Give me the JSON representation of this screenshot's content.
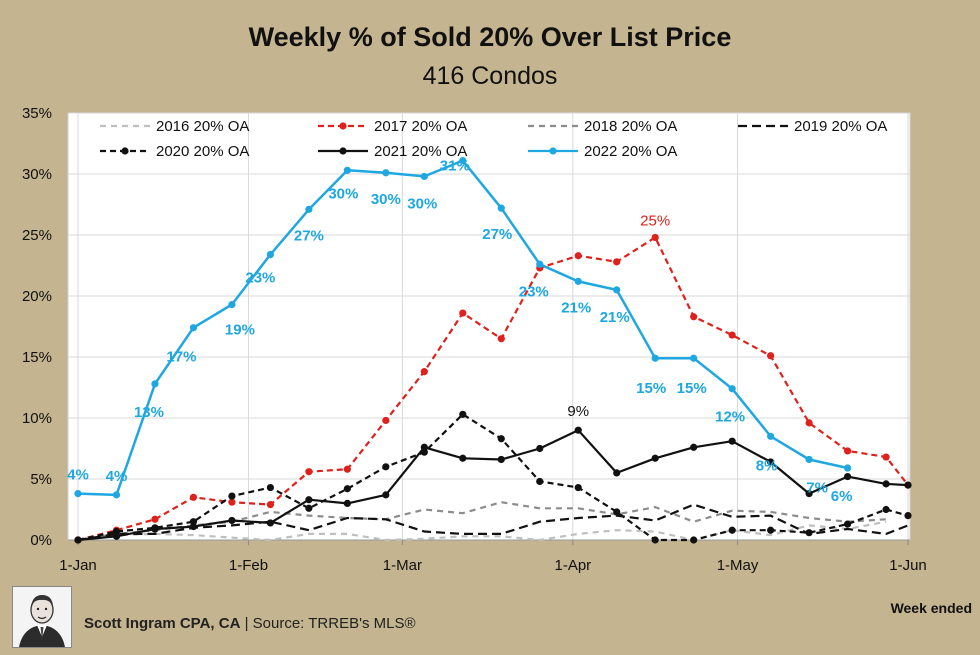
{
  "chart_data": {
    "type": "line",
    "title": "Weekly % of Sold 20% Over List Price",
    "subtitle": "416 Condos",
    "xlabel": "Week ended",
    "ylabel": "",
    "ylim": [
      0,
      35
    ],
    "y_ticks": [
      "0%",
      "5%",
      "10%",
      "15%",
      "20%",
      "25%",
      "30%",
      "35%"
    ],
    "x_ticks": [
      "1-Jan",
      "1-Feb",
      "1-Mar",
      "1-Apr",
      "1-May",
      "1-Jun"
    ],
    "x_tick_weeks": [
      0,
      4.43,
      8.43,
      12.86,
      17.14,
      21.57
    ],
    "x_range": [
      0,
      21.57
    ],
    "series": [
      {
        "name": "2016 20% OA",
        "color": "#bfbfbf",
        "dash": "6,5",
        "markers": false,
        "x": [
          0,
          1,
          2,
          3,
          4,
          5,
          6,
          7,
          8,
          9,
          10,
          11,
          12,
          13,
          14,
          15,
          16,
          17,
          18,
          19,
          20,
          21
        ],
        "values": [
          0,
          0.4,
          0.5,
          0.4,
          0.2,
          0,
          0.5,
          0.5,
          0,
          0.1,
          0.3,
          0.3,
          0,
          0.5,
          0.8,
          0.7,
          0,
          0.8,
          0.4,
          1.2,
          0.9,
          1.5
        ]
      },
      {
        "name": "2017 20% OA",
        "color": "#e0201b",
        "dash": "6,4",
        "markers": true,
        "x": [
          0,
          1,
          2,
          3,
          4,
          5,
          6,
          7,
          8,
          9,
          10,
          11,
          12,
          13,
          14,
          15,
          16,
          17,
          18,
          19,
          20,
          21,
          21.57
        ],
        "values": [
          0,
          0.8,
          1.7,
          3.5,
          3.1,
          2.9,
          5.6,
          5.8,
          9.8,
          13.8,
          18.6,
          16.5,
          22.3,
          23.3,
          22.8,
          24.8,
          18.3,
          16.8,
          15.1,
          9.6,
          7.3,
          6.8,
          4.5
        ]
      },
      {
        "name": "2018 20% OA",
        "color": "#8c8c8c",
        "dash": "6,5",
        "markers": false,
        "x": [
          0,
          1,
          2,
          3,
          4,
          5,
          6,
          7,
          8,
          9,
          10,
          11,
          12,
          13,
          14,
          15,
          16,
          17,
          18,
          19,
          20,
          21
        ],
        "values": [
          0,
          0.5,
          0.8,
          1.2,
          1.5,
          2.3,
          2,
          1.8,
          1.7,
          2.5,
          2.2,
          3.1,
          2.6,
          2.6,
          2.1,
          2.7,
          1.5,
          2.4,
          2.3,
          1.8,
          1.5,
          1.7
        ]
      },
      {
        "name": "2019 20% OA",
        "color": "#111111",
        "dash": "9,5",
        "markers": false,
        "x": [
          0,
          1,
          2,
          3,
          4,
          5,
          6,
          7,
          8,
          9,
          10,
          11,
          12,
          13,
          14,
          15,
          16,
          17,
          18,
          19,
          20,
          21,
          21.57
        ],
        "values": [
          0,
          0.5,
          0.5,
          1,
          1.2,
          1.5,
          0.8,
          1.8,
          1.7,
          0.7,
          0.5,
          0.5,
          1.5,
          1.8,
          2,
          1.6,
          2.9,
          1.9,
          2,
          0.5,
          0.9,
          0.5,
          1.2
        ]
      },
      {
        "name": "2020 20% OA",
        "color": "#111111",
        "dash": "6,4",
        "markers": true,
        "x": [
          0,
          1,
          2,
          3,
          4,
          5,
          6,
          7,
          8,
          9,
          10,
          11,
          12,
          13,
          14,
          15,
          16,
          17,
          18,
          19,
          20,
          21,
          21.57
        ],
        "values": [
          0,
          0.7,
          1,
          1.5,
          3.6,
          4.3,
          2.6,
          4.2,
          6,
          7.2,
          10.3,
          8.3,
          4.8,
          4.3,
          2.3,
          0,
          0,
          0.8,
          0.8,
          0.6,
          1.3,
          2.5,
          2
        ]
      },
      {
        "name": "2021 20% OA",
        "color": "#111111",
        "dash": "",
        "markers": true,
        "x": [
          0,
          1,
          2,
          3,
          4,
          5,
          6,
          7,
          8,
          9,
          10,
          11,
          12,
          13,
          14,
          15,
          16,
          17,
          18,
          19,
          20,
          21,
          21.57
        ],
        "values": [
          0,
          0.3,
          0.9,
          1.1,
          1.6,
          1.4,
          3.3,
          3,
          3.7,
          7.6,
          6.7,
          6.6,
          7.5,
          9,
          5.5,
          6.7,
          7.6,
          8.1,
          6.4,
          3.8,
          5.2,
          4.6,
          4.5
        ]
      },
      {
        "name": "2022 20% OA",
        "color": "#1ea7e1",
        "dash": "",
        "markers": true,
        "x": [
          0,
          1,
          2,
          3,
          4,
          5,
          6,
          7,
          8,
          9,
          10,
          11,
          12,
          13,
          14,
          15,
          16,
          17,
          18,
          19,
          20
        ],
        "values": [
          3.8,
          3.7,
          12.8,
          17.4,
          19.3,
          23.4,
          27.1,
          30.3,
          30.1,
          29.8,
          31.1,
          27.2,
          22.6,
          21.2,
          20.5,
          14.9,
          14.9,
          12.4,
          8.5,
          6.6,
          5.9
        ]
      }
    ],
    "annotations_2022": [
      {
        "x": 0,
        "text": "4%"
      },
      {
        "x": 1,
        "text": "4%"
      },
      {
        "x": 2,
        "text": "13%"
      },
      {
        "x": 3,
        "text": "17%"
      },
      {
        "x": 4,
        "text": "19%"
      },
      {
        "x": 5,
        "text": "23%"
      },
      {
        "x": 6,
        "text": "27%"
      },
      {
        "x": 7,
        "text": "30%"
      },
      {
        "x": 8,
        "text": "30%"
      },
      {
        "x": 9,
        "text": "30%"
      },
      {
        "x": 10,
        "text": "31%"
      },
      {
        "x": 11,
        "text": "27%"
      },
      {
        "x": 12,
        "text": "23%"
      },
      {
        "x": 13,
        "text": "21%"
      },
      {
        "x": 14,
        "text": "21%"
      },
      {
        "x": 15,
        "text": "15%"
      },
      {
        "x": 16,
        "text": "15%"
      },
      {
        "x": 17,
        "text": "12%"
      },
      {
        "x": 18,
        "text": "8%"
      },
      {
        "x": 19,
        "text": "7%"
      },
      {
        "x": 20,
        "text": "6%"
      }
    ],
    "annotation_2017": {
      "x": 15,
      "text": "25%"
    },
    "annotation_2021": {
      "x": 13,
      "text": "9%"
    }
  },
  "footer": {
    "author": "Scott Ingram CPA, CA",
    "separator": "|",
    "source": "Source: TRREB's MLS®",
    "week_ended": "Week ended"
  }
}
